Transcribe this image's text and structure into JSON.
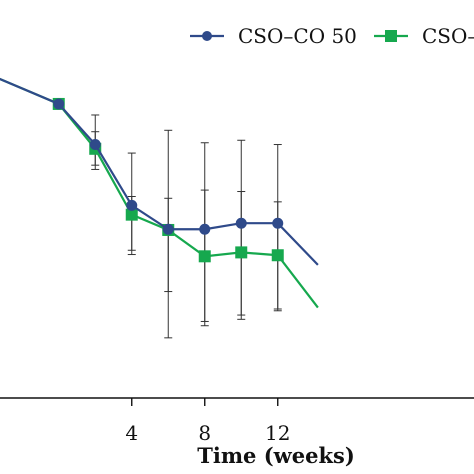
{
  "chart_data": {
    "type": "line",
    "xlabel": "Time (weeks)",
    "ylabel": "",
    "title": "",
    "x_ticks": [
      "4",
      "8",
      "12"
    ],
    "xlim": [
      -3.6,
      14.2
    ],
    "ylim": [
      0,
      100
    ],
    "grid": false,
    "legend_position": "top-right",
    "series": [
      {
        "name": "CSO–CO 50",
        "color": "#2f4a8a",
        "marker": "circle",
        "x": [
          -3.6,
          0,
          2,
          4,
          6,
          8,
          10,
          12,
          14.2
        ],
        "y": [
          90.4,
          82.6,
          71.2,
          54.1,
          47.4,
          47.4,
          49.1,
          49.1,
          37.4
        ],
        "err_low": [
          null,
          null,
          64.2,
          41.5,
          16.9,
          20.3,
          22.1,
          24.5,
          null
        ],
        "err_high": [
          null,
          null,
          79.5,
          68.8,
          75.2,
          71.7,
          72.4,
          71.2,
          null
        ]
      },
      {
        "name": "CSO–CO",
        "color": "#16a84e",
        "marker": "square",
        "x": [
          -3.6,
          0,
          2,
          4,
          6,
          8,
          10,
          12,
          14.2
        ],
        "y": [
          90.4,
          82.6,
          70.0,
          51.5,
          47.2,
          39.8,
          40.9,
          40.1,
          25.4
        ],
        "err_low": [
          null,
          null,
          65.4,
          40.3,
          29.9,
          21.5,
          23.3,
          25.0,
          null
        ],
        "err_high": [
          null,
          null,
          74.8,
          56.6,
          56.1,
          58.4,
          58.0,
          55.1,
          null
        ]
      }
    ]
  }
}
